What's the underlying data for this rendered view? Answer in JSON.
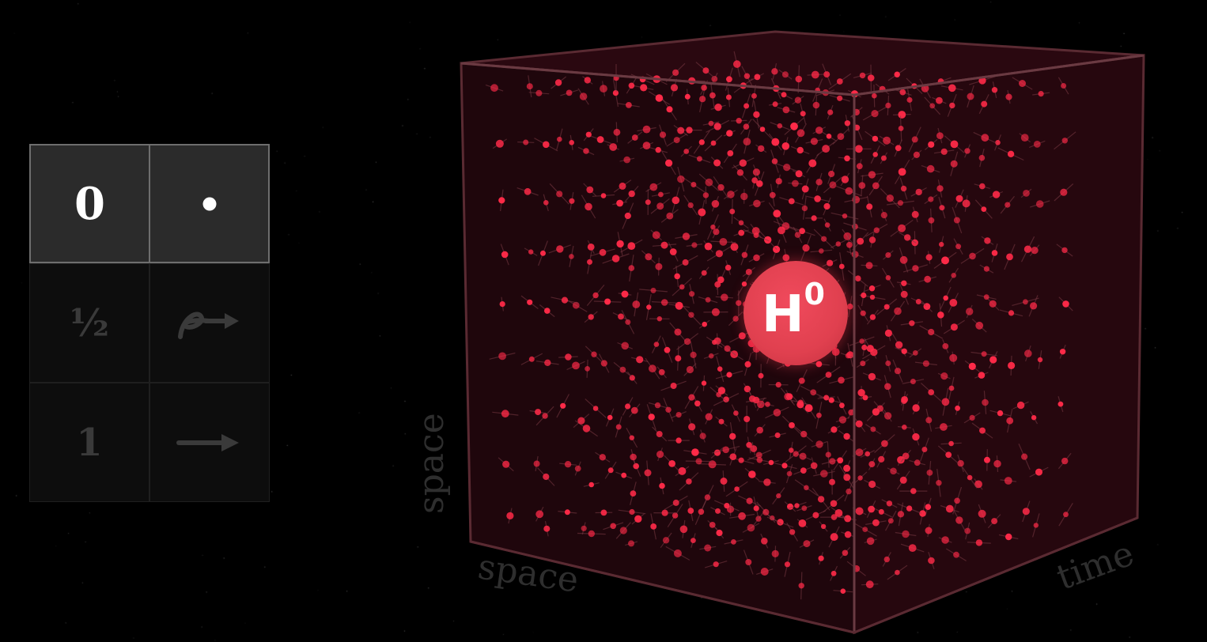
{
  "spin_table": {
    "rows": [
      {
        "spin": "0",
        "icon": "dot-icon",
        "active": true
      },
      {
        "spin": "½",
        "icon": "spiral-arrow-icon",
        "active": false
      },
      {
        "spin": "1",
        "icon": "arrow-icon",
        "active": false
      }
    ]
  },
  "cube": {
    "axis_left": "space",
    "axis_bottom": "space",
    "axis_right": "time",
    "field_color": "#ff2a48",
    "cube_color": "#3a0a12"
  },
  "higgs": {
    "symbol": "H",
    "charge": "0",
    "color": "#e8404f"
  }
}
